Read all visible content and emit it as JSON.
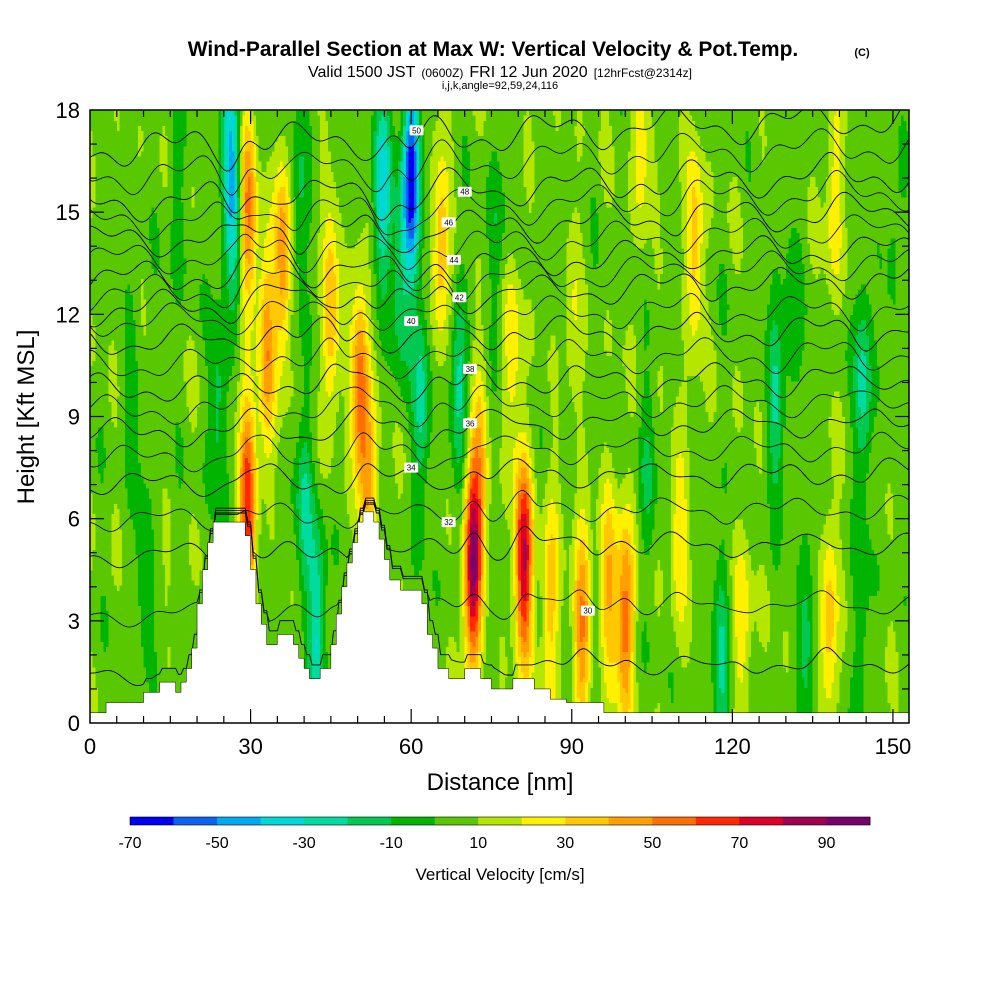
{
  "header": {
    "title": "Wind-Parallel Section at Max W: Vertical Velocity & Pot.Temp.",
    "copyright": "(C)",
    "valid_main": "Valid 1500 JST",
    "valid_utc": "(0600Z)",
    "valid_date": "FRI 12 Jun 2020",
    "forecast": "[12hrFcst@2314z]",
    "grid_info": "i,j,k,angle=92,59,24,116"
  },
  "chart_data": {
    "type": "heatmap",
    "xlabel": "Distance [nm]",
    "ylabel": "Height [Kft MSL]",
    "xlim": [
      0,
      153
    ],
    "ylim": [
      0,
      18
    ],
    "x_ticks": [
      0,
      30,
      60,
      90,
      120,
      150
    ],
    "y_ticks": [
      0,
      3,
      6,
      9,
      12,
      15,
      18
    ],
    "colorbar": {
      "label": "Vertical Velocity [cm/s]",
      "tick_labels": [
        "-70",
        "-50",
        "-30",
        "-10",
        "10",
        "30",
        "50",
        "70",
        "90"
      ],
      "bounds": [
        -70,
        -60,
        -50,
        -40,
        -30,
        -20,
        -10,
        0,
        10,
        20,
        30,
        40,
        50,
        60,
        70,
        80,
        90
      ],
      "colors": [
        "#0000f0",
        "#0a64f0",
        "#00aaf0",
        "#00d7d7",
        "#00dca0",
        "#00c850",
        "#00b400",
        "#5ac800",
        "#b4e600",
        "#fff000",
        "#ffc800",
        "#ffa000",
        "#ff6e00",
        "#ff2800",
        "#dc0028",
        "#a00050",
        "#78006e"
      ]
    },
    "terrain": [
      [
        0,
        0.3
      ],
      [
        3,
        0.3
      ],
      [
        3,
        0.6
      ],
      [
        10,
        0.6
      ],
      [
        10,
        0.9
      ],
      [
        13,
        0.9
      ],
      [
        13,
        1.2
      ],
      [
        16,
        1.2
      ],
      [
        16,
        0.9
      ],
      [
        17,
        0.9
      ],
      [
        17,
        1.2
      ],
      [
        18,
        1.2
      ],
      [
        18,
        1.6
      ],
      [
        19,
        1.6
      ],
      [
        19,
        2.2
      ],
      [
        20,
        2.2
      ],
      [
        20,
        3.5
      ],
      [
        21,
        3.5
      ],
      [
        21,
        4.5
      ],
      [
        22,
        4.5
      ],
      [
        22,
        5.3
      ],
      [
        23,
        5.3
      ],
      [
        23,
        5.9
      ],
      [
        29,
        5.9
      ],
      [
        29,
        5.5
      ],
      [
        30,
        5.5
      ],
      [
        30,
        4.5
      ],
      [
        31,
        4.5
      ],
      [
        31,
        3.5
      ],
      [
        32,
        3.5
      ],
      [
        32,
        2.9
      ],
      [
        33,
        2.9
      ],
      [
        33,
        2.3
      ],
      [
        35,
        2.3
      ],
      [
        35,
        2.6
      ],
      [
        38,
        2.6
      ],
      [
        38,
        2.3
      ],
      [
        39,
        2.3
      ],
      [
        39,
        1.9
      ],
      [
        40,
        1.9
      ],
      [
        40,
        1.6
      ],
      [
        41,
        1.6
      ],
      [
        41,
        1.3
      ],
      [
        43,
        1.3
      ],
      [
        43,
        1.6
      ],
      [
        45,
        1.6
      ],
      [
        45,
        2.3
      ],
      [
        46,
        2.3
      ],
      [
        46,
        3.2
      ],
      [
        47,
        3.2
      ],
      [
        47,
        4.0
      ],
      [
        48,
        4.0
      ],
      [
        48,
        4.7
      ],
      [
        49,
        4.7
      ],
      [
        49,
        5.3
      ],
      [
        50,
        5.3
      ],
      [
        50,
        5.9
      ],
      [
        51,
        5.9
      ],
      [
        51,
        6.2
      ],
      [
        53,
        6.2
      ],
      [
        53,
        5.9
      ],
      [
        54,
        5.9
      ],
      [
        54,
        5.4
      ],
      [
        55,
        5.4
      ],
      [
        55,
        4.8
      ],
      [
        56,
        4.8
      ],
      [
        56,
        4.2
      ],
      [
        58,
        4.2
      ],
      [
        58,
        3.9
      ],
      [
        62,
        3.9
      ],
      [
        62,
        3.5
      ],
      [
        63,
        3.5
      ],
      [
        63,
        2.6
      ],
      [
        64,
        2.6
      ],
      [
        64,
        2.2
      ],
      [
        65,
        2.2
      ],
      [
        65,
        1.6
      ],
      [
        67,
        1.6
      ],
      [
        67,
        1.3
      ],
      [
        70,
        1.3
      ],
      [
        70,
        1.6
      ],
      [
        73,
        1.6
      ],
      [
        73,
        1.3
      ],
      [
        75,
        1.3
      ],
      [
        75,
        1.0
      ],
      [
        79,
        1.0
      ],
      [
        79,
        1.3
      ],
      [
        83,
        1.3
      ],
      [
        83,
        1.0
      ],
      [
        86,
        1.0
      ],
      [
        86,
        0.7
      ],
      [
        89,
        0.7
      ],
      [
        89,
        0.6
      ],
      [
        96,
        0.6
      ],
      [
        96,
        0.3
      ],
      [
        153,
        0.3
      ]
    ],
    "anomalies": [
      {
        "x": 29.5,
        "z": 6.5,
        "w": 62
      },
      {
        "x": 29.5,
        "z": 15.0,
        "w": 45
      },
      {
        "x": 33,
        "z": 11.0,
        "w": 38
      },
      {
        "x": 36,
        "z": 13.5,
        "w": 45
      },
      {
        "x": 27,
        "z": 15.0,
        "w": -28
      },
      {
        "x": 24,
        "z": 9.5,
        "w": -22
      },
      {
        "x": 26,
        "z": 17.0,
        "w": -32
      },
      {
        "x": 40,
        "z": 6.5,
        "w": -25
      },
      {
        "x": 42.5,
        "z": 2.8,
        "w": -38
      },
      {
        "x": 39,
        "z": 15.0,
        "w": -20
      },
      {
        "x": 45,
        "z": 12.0,
        "w": 35
      },
      {
        "x": 50.5,
        "z": 10.0,
        "w": 50
      },
      {
        "x": 52,
        "z": 7.0,
        "w": 30
      },
      {
        "x": 54.5,
        "z": 15.5,
        "w": -42
      },
      {
        "x": 58,
        "z": 13.0,
        "w": -22
      },
      {
        "x": 60,
        "z": 16.0,
        "w": -72
      },
      {
        "x": 62,
        "z": 9.5,
        "w": -30
      },
      {
        "x": 65.5,
        "z": 14.0,
        "w": 34
      },
      {
        "x": 71.5,
        "z": 4.6,
        "w": 85
      },
      {
        "x": 81,
        "z": 4.7,
        "w": 75
      },
      {
        "x": 79,
        "z": 11.0,
        "w": 22
      },
      {
        "x": 76,
        "z": 14.0,
        "w": -15
      },
      {
        "x": 73,
        "z": 8.0,
        "w": 25
      },
      {
        "x": 69,
        "z": 10.0,
        "w": -28
      },
      {
        "x": 86,
        "z": 3.5,
        "w": 32
      },
      {
        "x": 92,
        "z": 3.0,
        "w": 45
      },
      {
        "x": 97,
        "z": 4.0,
        "w": 32
      },
      {
        "x": 90,
        "z": 12.0,
        "w": 14
      },
      {
        "x": 100,
        "z": 3.0,
        "w": 52
      },
      {
        "x": 104,
        "z": 7.0,
        "w": -15
      },
      {
        "x": 110,
        "z": 5.5,
        "w": 22
      },
      {
        "x": 113,
        "z": 14.0,
        "w": 30
      },
      {
        "x": 118,
        "z": 2.0,
        "w": -25
      },
      {
        "x": 122,
        "z": 3.0,
        "w": 22
      },
      {
        "x": 128,
        "z": 9.5,
        "w": -24
      },
      {
        "x": 131,
        "z": 12.0,
        "w": -14
      },
      {
        "x": 134,
        "z": 2.5,
        "w": -20
      },
      {
        "x": 138,
        "z": 3.0,
        "w": 32
      },
      {
        "x": 144.5,
        "z": 10.0,
        "w": -32
      },
      {
        "x": 144,
        "z": 2.5,
        "w": -15
      },
      {
        "x": 139,
        "z": 15.5,
        "w": 22
      },
      {
        "x": 103,
        "z": 17.0,
        "w": 20
      },
      {
        "x": 10,
        "z": 4.5,
        "w": -14
      },
      {
        "x": 8,
        "z": 10.0,
        "w": -10
      },
      {
        "x": 16,
        "z": 15.5,
        "w": -12
      },
      {
        "x": 150,
        "z": 14.0,
        "w": -12
      }
    ],
    "theta_contours": [
      {
        "value": 30,
        "label": "30",
        "base": 1.6,
        "label_x": 93,
        "label_z": 3.3
      },
      {
        "value": 32,
        "label": "32",
        "base": 5.1,
        "label_x": 67,
        "label_z": 5.9
      },
      {
        "value": 34,
        "label": "34",
        "base": 7.2,
        "label_x": 60,
        "label_z": 7.5
      },
      {
        "value": 36,
        "label": "36",
        "base": 8.7,
        "label_x": 71,
        "label_z": 8.8
      },
      {
        "value": 38,
        "label": "38",
        "base": 10.0,
        "label_x": 71,
        "label_z": 10.4
      },
      {
        "value": 40,
        "label": "40",
        "base": 11.4,
        "label_x": 60,
        "label_z": 11.8
      },
      {
        "value": 42,
        "label": "42",
        "base": 12.6,
        "label_x": 69,
        "label_z": 12.5
      },
      {
        "value": 44,
        "label": "44",
        "base": 13.5,
        "label_x": 68,
        "label_z": 13.6
      },
      {
        "value": 46,
        "label": "46",
        "base": 14.6,
        "label_x": 67,
        "label_z": 14.7
      },
      {
        "value": 48,
        "label": "48",
        "base": 15.7,
        "label_x": 70,
        "label_z": 15.6
      },
      {
        "value": 50,
        "label": "50",
        "base": 17.3,
        "label_x": 61,
        "label_z": 17.4
      }
    ]
  }
}
